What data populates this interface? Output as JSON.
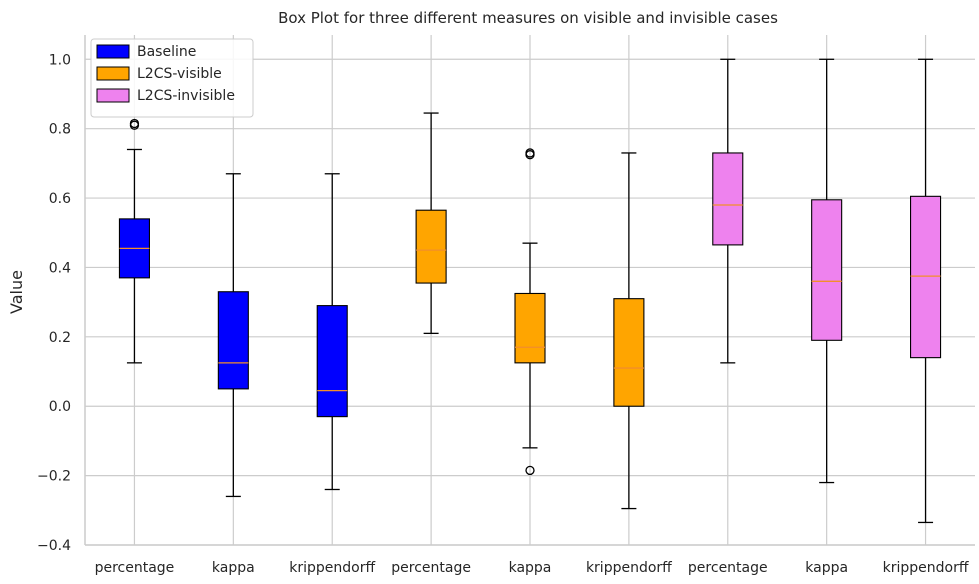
{
  "chart_data": {
    "type": "box",
    "title": "Box Plot for three different measures on visible and invisible cases",
    "xlabel": "",
    "ylabel": "Value",
    "ylim": [
      -0.4,
      1.07
    ],
    "yticks": [
      -0.4,
      -0.2,
      0.0,
      0.2,
      0.4,
      0.6,
      0.8,
      1.0
    ],
    "ytick_labels": [
      "−0.4",
      "−0.2",
      "0.0",
      "0.2",
      "0.4",
      "0.6",
      "0.8",
      "1.0"
    ],
    "grid": true,
    "legend_position": "top-left",
    "median_color": "#f28e2b",
    "series": [
      {
        "name": "Baseline",
        "color": "#0000ff"
      },
      {
        "name": "L2CS-visible",
        "color": "#ffa500"
      },
      {
        "name": "L2CS-invisible",
        "color": "#ee82ee"
      }
    ],
    "boxes": [
      {
        "label": "percentage",
        "series": 0,
        "whislo": 0.125,
        "q1": 0.37,
        "median": 0.455,
        "q3": 0.54,
        "whishi": 0.74,
        "fliers": [
          0.81,
          0.815
        ]
      },
      {
        "label": "kappa",
        "series": 0,
        "whislo": -0.26,
        "q1": 0.05,
        "median": 0.125,
        "q3": 0.33,
        "whishi": 0.67,
        "fliers": []
      },
      {
        "label": "krippendorff",
        "series": 0,
        "whislo": -0.24,
        "q1": -0.03,
        "median": 0.045,
        "q3": 0.29,
        "whishi": 0.67,
        "fliers": []
      },
      {
        "label": "percentage",
        "series": 1,
        "whislo": 0.21,
        "q1": 0.355,
        "median": 0.45,
        "q3": 0.565,
        "whishi": 0.845,
        "fliers": []
      },
      {
        "label": "kappa",
        "series": 1,
        "whislo": -0.12,
        "q1": 0.125,
        "median": 0.17,
        "q3": 0.325,
        "whishi": 0.47,
        "fliers": [
          0.725,
          0.73,
          -0.185
        ]
      },
      {
        "label": "krippendorff",
        "series": 1,
        "whislo": -0.295,
        "q1": 0.0,
        "median": 0.11,
        "q3": 0.31,
        "whishi": 0.73,
        "fliers": []
      },
      {
        "label": "percentage",
        "series": 2,
        "whislo": 0.125,
        "q1": 0.465,
        "median": 0.58,
        "q3": 0.73,
        "whishi": 1.0,
        "fliers": []
      },
      {
        "label": "kappa",
        "series": 2,
        "whislo": -0.22,
        "q1": 0.19,
        "median": 0.36,
        "q3": 0.595,
        "whishi": 1.0,
        "fliers": []
      },
      {
        "label": "krippendorff",
        "series": 2,
        "whislo": -0.335,
        "q1": 0.14,
        "median": 0.375,
        "q3": 0.605,
        "whishi": 1.0,
        "fliers": []
      }
    ]
  }
}
